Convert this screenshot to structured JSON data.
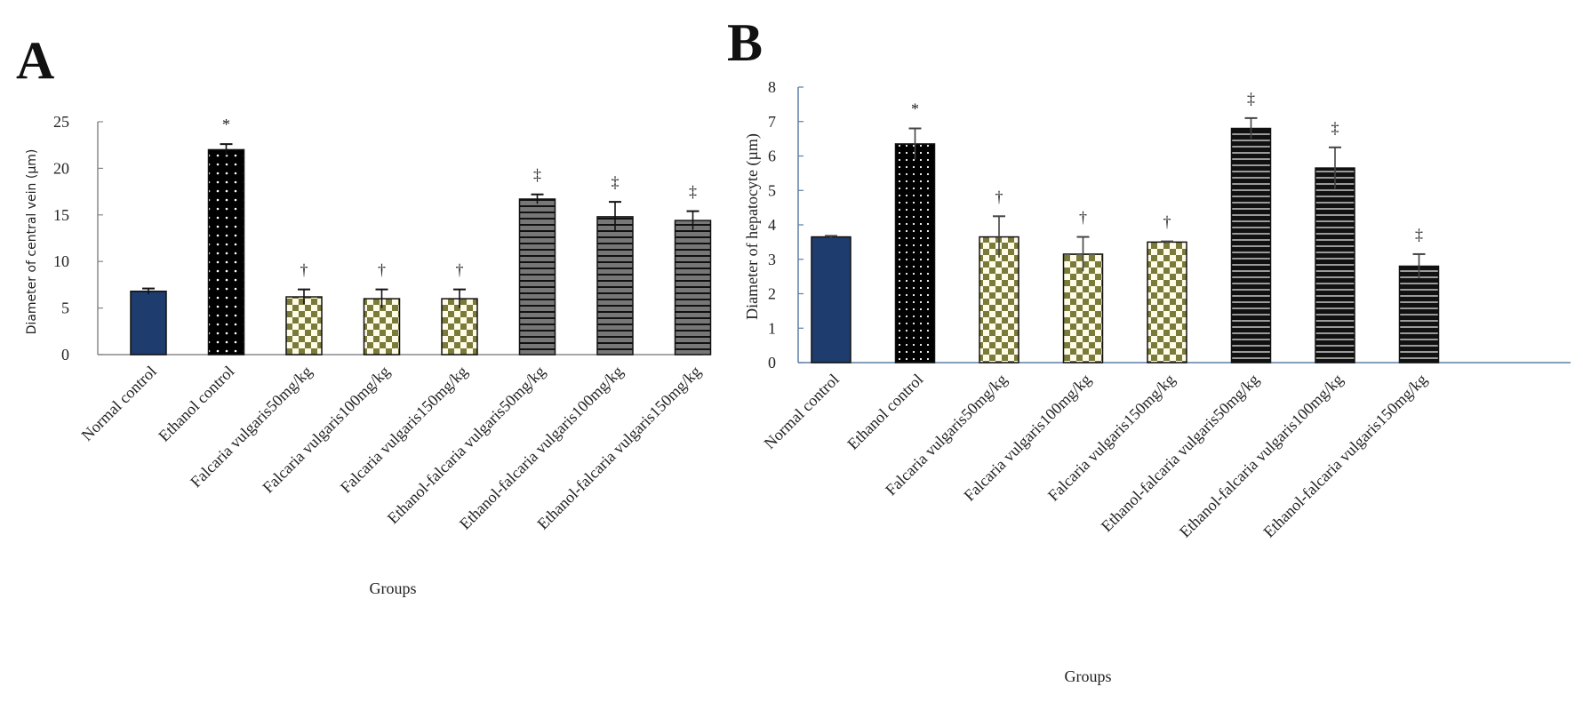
{
  "chart_data": [
    {
      "panel": "A",
      "type": "bar",
      "title": "",
      "xlabel": "Groups",
      "ylabel": "Diameter of central vein (µm)",
      "ylim": [
        0,
        25
      ],
      "yticks": [
        0,
        5,
        10,
        15,
        20,
        25
      ],
      "grid": false,
      "categories": [
        "Normal control",
        "Ethanol control",
        "Falcaria vulgaris50mg/kg",
        "Falcaria vulgaris100mg/kg",
        "Falcaria vulgaris150mg/kg",
        "Ethanol-falcaria vulgaris50mg/kg",
        "Ethanol-falcaria vulgaris100mg/kg",
        "Ethanol-falcaria vulgaris150mg/kg"
      ],
      "values": [
        6.8,
        22.0,
        6.2,
        6.0,
        6.0,
        16.7,
        14.8,
        14.4
      ],
      "errors": [
        0.3,
        0.6,
        0.8,
        1.0,
        1.0,
        0.5,
        1.6,
        1.0
      ],
      "patterns": [
        "solid-blue",
        "dots",
        "checker",
        "checker",
        "checker",
        "stripes-gray",
        "stripes-gray",
        "stripes-gray"
      ],
      "significance": [
        "",
        "*",
        "†",
        "†",
        "†",
        "‡",
        "‡",
        "‡"
      ]
    },
    {
      "panel": "B",
      "type": "bar",
      "title": "",
      "xlabel": "Groups",
      "ylabel": "Diameter  of hepatocyte (µm)",
      "ylim": [
        0,
        8
      ],
      "yticks": [
        0,
        1,
        2,
        3,
        4,
        5,
        6,
        7,
        8
      ],
      "grid": false,
      "categories": [
        "Normal control",
        "Ethanol control",
        "Falcaria vulgaris50mg/kg",
        "Falcaria vulgaris100mg/kg",
        "Falcaria vulgaris150mg/kg",
        "Ethanol-falcaria vulgaris50mg/kg",
        "Ethanol-falcaria vulgaris100mg/kg",
        "Ethanol-falcaria vulgaris150mg/kg"
      ],
      "values": [
        3.65,
        6.35,
        3.65,
        3.15,
        3.5,
        6.8,
        5.65,
        2.8
      ],
      "errors": [
        0.03,
        0.45,
        0.6,
        0.5,
        0.02,
        0.3,
        0.6,
        0.35
      ],
      "patterns": [
        "solid-blue",
        "dots",
        "checker",
        "checker",
        "checker",
        "stripes-dark",
        "stripes-dark",
        "stripes-dark"
      ],
      "significance": [
        "",
        "*",
        "†",
        "†",
        "†",
        "‡",
        "‡",
        "‡"
      ]
    }
  ],
  "colors": {
    "blue": "#1f3c6e",
    "olive": "#7a7a3a",
    "checker_light": "#fffbe6",
    "stripe_gray": "#777777",
    "axis_a": "#888888",
    "axis_b": "#5b7fa6"
  }
}
